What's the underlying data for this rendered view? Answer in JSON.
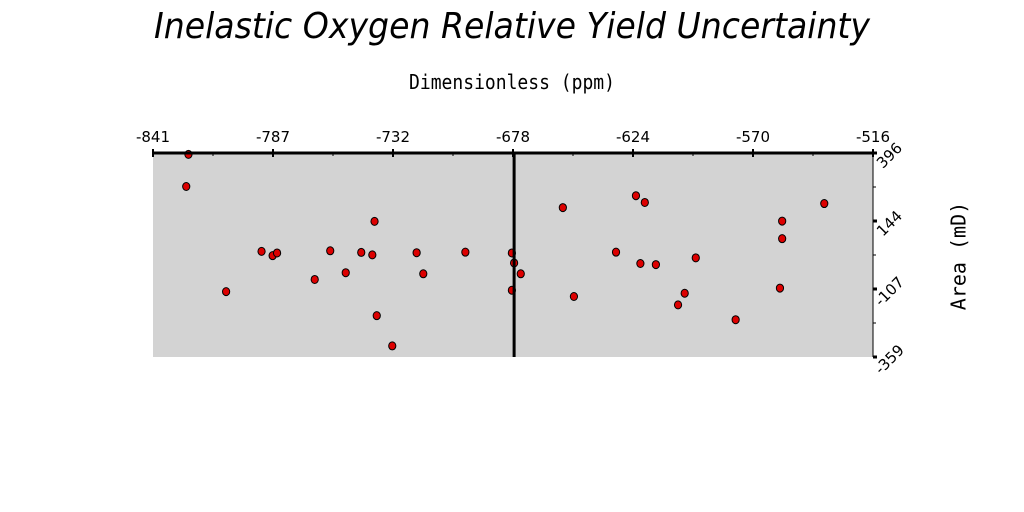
{
  "chart_data": {
    "type": "scatter",
    "title": "Inelastic Oxygen Relative Yield Uncertainty",
    "xlabel": "Dimensionless (ppm)",
    "ylabel": "Area (mD)",
    "xlim": [
      -841,
      -516
    ],
    "ylim": [
      -359,
      396
    ],
    "xticks": [
      "-841",
      "-787",
      "-732",
      "-678",
      "-624",
      "-570",
      "-516"
    ],
    "yticks": [
      "396",
      "144",
      "-107",
      "-359"
    ],
    "vline_x": -678,
    "grid": false,
    "marker_color": "#dd0000",
    "background": "#d3d3d3",
    "series": [
      {
        "x": [
          -825,
          -826,
          -808,
          -792,
          -787,
          -785,
          -768,
          -761,
          -754,
          -747,
          -742,
          -741,
          -740,
          -733,
          -722,
          -719,
          -700,
          -679,
          -679,
          -678,
          -675,
          -656,
          -651,
          -632,
          -623,
          -621,
          -619,
          -614,
          -604,
          -601,
          -596,
          -578,
          -558,
          -557,
          -557,
          -538
        ],
        "y": [
          391,
          272,
          -117,
          32,
          16,
          26,
          -72,
          34,
          -47,
          28,
          19,
          143,
          -206,
          -318,
          27,
          -51,
          29,
          -112,
          26,
          -11,
          -51,
          194,
          -135,
          29,
          238,
          -13,
          213,
          -17,
          -166,
          -123,
          8,
          -221,
          -104,
          144,
          79,
          209
        ]
      }
    ]
  }
}
